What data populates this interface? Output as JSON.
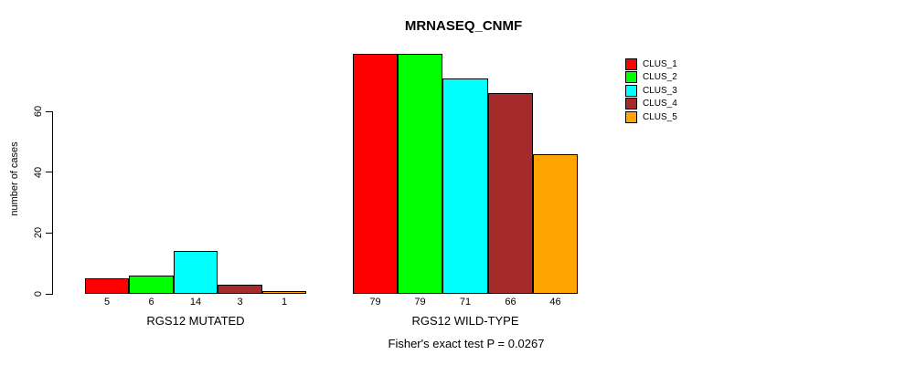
{
  "chart_data": {
    "type": "bar",
    "title": "MRNASEQ_CNMF",
    "ylabel": "number of cases",
    "xlabel": "",
    "categories": [
      "RGS12 MUTATED",
      "RGS12 WILD-TYPE"
    ],
    "series": [
      {
        "name": "CLUS_1",
        "color": "#ff0000",
        "values": [
          5,
          79
        ]
      },
      {
        "name": "CLUS_2",
        "color": "#00ff00",
        "values": [
          6,
          79
        ]
      },
      {
        "name": "CLUS_3",
        "color": "#00ffff",
        "values": [
          14,
          71
        ]
      },
      {
        "name": "CLUS_4",
        "color": "#a52a2a",
        "values": [
          3,
          66
        ]
      },
      {
        "name": "CLUS_5",
        "color": "#ffa500",
        "values": [
          1,
          46
        ]
      }
    ],
    "y_ticks": [
      0,
      20,
      40,
      60
    ],
    "ylim": [
      0,
      80
    ],
    "grid": false,
    "bar_value_labels_shown": true,
    "legend_position": "right",
    "legend_entries": [
      "CLUS_1",
      "CLUS_2",
      "CLUS_3",
      "CLUS_4",
      "CLUS_5"
    ],
    "annotation": "Fisher's exact test P = 0.0267"
  }
}
